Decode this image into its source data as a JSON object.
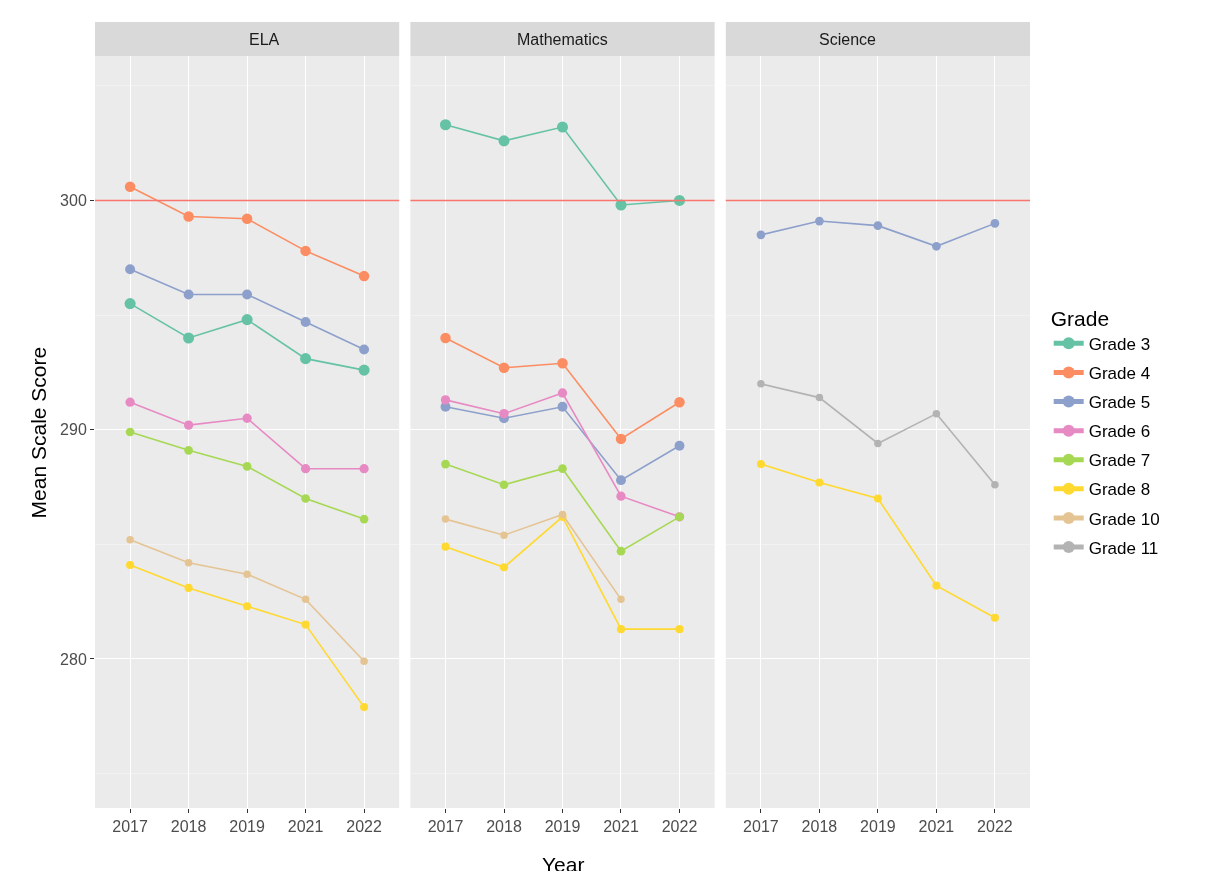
{
  "chart_data": [
    {
      "type": "line",
      "title": "ELA",
      "ylabel": "Mean Scale Score",
      "categories": [
        "2017",
        "2018",
        "2019",
        "2021",
        "2022"
      ],
      "ylim": [
        273.5,
        306.3
      ],
      "yticks": [
        280,
        290,
        300
      ],
      "grid": true,
      "marker": "circle",
      "line_style": "solid",
      "legend": "right",
      "ref_lines": [
        {
          "axis": "y",
          "value": 300,
          "color": "#f8766d"
        }
      ],
      "series": [
        {
          "name": "Grade 3",
          "color": "#66c2a5",
          "values": [
            295.5,
            294.0,
            294.8,
            293.1,
            292.6
          ]
        },
        {
          "name": "Grade 4",
          "color": "#fc8d62",
          "values": [
            300.6,
            299.3,
            299.2,
            297.8,
            296.7
          ]
        },
        {
          "name": "Grade 5",
          "color": "#8da0cb",
          "values": [
            297.0,
            295.9,
            295.9,
            294.7,
            293.5
          ]
        },
        {
          "name": "Grade 6",
          "color": "#e78ac3",
          "values": [
            291.2,
            290.2,
            290.5,
            288.3,
            288.3
          ]
        },
        {
          "name": "Grade 7",
          "color": "#a6d854",
          "values": [
            289.9,
            289.1,
            288.4,
            287.0,
            286.1
          ]
        },
        {
          "name": "Grade 8",
          "color": "#ffd92f",
          "values": [
            284.1,
            283.1,
            282.3,
            281.5,
            277.9
          ]
        },
        {
          "name": "Grade 10",
          "color": "#e5c494",
          "values": [
            285.2,
            284.2,
            283.7,
            282.6,
            279.9
          ]
        }
      ]
    },
    {
      "type": "line",
      "title": "Mathematics",
      "xlabel": "Year",
      "categories": [
        "2017",
        "2018",
        "2019",
        "2021",
        "2022"
      ],
      "ylim": [
        273.5,
        306.3
      ],
      "yticks": [
        280,
        290,
        300
      ],
      "tick_labels": "x",
      "grid": true,
      "marker": "circle",
      "line_style": "solid",
      "legend": "right",
      "ref_lines": [
        {
          "axis": "y",
          "value": 300,
          "color": "#f8766d"
        }
      ],
      "series": [
        {
          "name": "Grade 3",
          "color": "#66c2a5",
          "values": [
            303.3,
            302.6,
            303.2,
            299.8,
            300.0
          ]
        },
        {
          "name": "Grade 4",
          "color": "#fc8d62",
          "values": [
            294.0,
            292.7,
            292.9,
            289.6,
            291.2
          ]
        },
        {
          "name": "Grade 5",
          "color": "#8da0cb",
          "values": [
            291.0,
            290.5,
            291.0,
            287.8,
            289.3
          ]
        },
        {
          "name": "Grade 6",
          "color": "#e78ac3",
          "values": [
            291.3,
            290.7,
            291.6,
            287.1,
            286.2
          ]
        },
        {
          "name": "Grade 7",
          "color": "#a6d854",
          "values": [
            288.5,
            287.6,
            288.3,
            284.7,
            286.2
          ]
        },
        {
          "name": "Grade 8",
          "color": "#ffd92f",
          "values": [
            284.9,
            284.0,
            286.2,
            281.3,
            281.3
          ]
        },
        {
          "name": "Grade 10",
          "color": "#e5c494",
          "values": [
            286.1,
            285.4,
            286.3,
            282.6,
            null
          ]
        }
      ]
    },
    {
      "type": "line",
      "title": "Science",
      "legend_title": "Grade",
      "categories": [
        "2017",
        "2018",
        "2019",
        "2021",
        "2022"
      ],
      "ylim": [
        273.5,
        306.3
      ],
      "yticks": [
        280,
        290,
        300
      ],
      "tick_labels": "x",
      "grid": true,
      "marker": "circle",
      "line_style": "solid",
      "legend": "right",
      "ref_lines": [
        {
          "axis": "y",
          "value": 300,
          "color": "#f8766d"
        }
      ],
      "series": [
        {
          "name": "Grade 5",
          "color": "#8da0cb",
          "values": [
            298.5,
            299.1,
            298.9,
            298.0,
            299.0
          ]
        },
        {
          "name": "Grade 8",
          "color": "#ffd92f",
          "values": [
            288.5,
            287.7,
            287.0,
            283.2,
            281.8
          ]
        },
        {
          "name": "Grade 11",
          "color": "#b3b3b3",
          "values": [
            292.0,
            291.4,
            289.4,
            290.7,
            287.6
          ]
        }
      ]
    }
  ]
}
